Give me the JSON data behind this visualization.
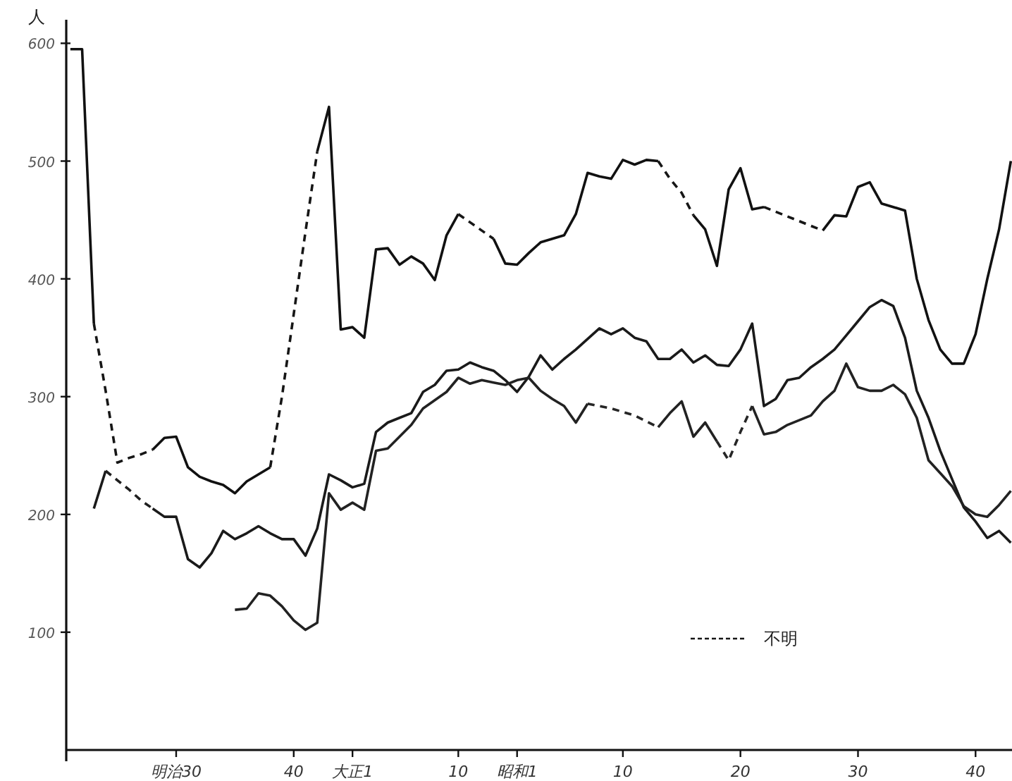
{
  "chart_data": {
    "type": "line",
    "ylabel": "人",
    "categories": [
      null,
      null,
      null,
      null,
      null,
      null,
      null,
      null,
      null,
      "明治30",
      null,
      null,
      null,
      null,
      null,
      null,
      null,
      null,
      null,
      "40",
      null,
      null,
      null,
      null,
      "大正1",
      null,
      null,
      null,
      null,
      null,
      null,
      null,
      null,
      "10",
      null,
      null,
      null,
      null,
      "昭和1",
      null,
      null,
      null,
      null,
      null,
      null,
      null,
      null,
      "10",
      null,
      null,
      null,
      null,
      null,
      null,
      null,
      null,
      null,
      "20",
      null,
      null,
      null,
      null,
      null,
      null,
      null,
      null,
      null,
      "30",
      null,
      null,
      null,
      null,
      null,
      null,
      null,
      null,
      null,
      "40",
      null,
      null,
      null
    ],
    "ylim": [
      0,
      620
    ],
    "yticks": [
      100,
      200,
      300,
      400,
      500,
      600
    ],
    "legend": "bottom right",
    "series": [
      {
        "color": "#111111",
        "line_style": "solid",
        "values": [
          595,
          595,
          362,
          null,
          null,
          null,
          null,
          255,
          265,
          266,
          240,
          232,
          228,
          225,
          218,
          228,
          234,
          240,
          null,
          null,
          null,
          508,
          546,
          357,
          359,
          350,
          425,
          426,
          412,
          419,
          413,
          399,
          437,
          455,
          null,
          null,
          434,
          413,
          412,
          422,
          431,
          434,
          437,
          455,
          490,
          487,
          485,
          501,
          497,
          501,
          500,
          null,
          null,
          454,
          442,
          411,
          476,
          494,
          459,
          461,
          null,
          null,
          null,
          null,
          441,
          454,
          453,
          478,
          482,
          464,
          461,
          458,
          400,
          365,
          340,
          328,
          328,
          353,
          400,
          442,
          500
        ]
      },
      {
        "name": "不明",
        "color": "#161616",
        "line_style": "dashed",
        "values": [
          null,
          null,
          362,
          305,
          244,
          248,
          251,
          255,
          null,
          null,
          null,
          null,
          null,
          null,
          null,
          null,
          null,
          240,
          300,
          370,
          440,
          508,
          null,
          null,
          null,
          null,
          null,
          null,
          null,
          null,
          null,
          null,
          null,
          455,
          448,
          441,
          434,
          null,
          null,
          null,
          null,
          null,
          null,
          null,
          null,
          null,
          null,
          null,
          null,
          null,
          500,
          485,
          473,
          454,
          null,
          null,
          null,
          null,
          null,
          461,
          457,
          453,
          449,
          445,
          441,
          null,
          null,
          null,
          null,
          null,
          null,
          null,
          null,
          null,
          null,
          null,
          null,
          null,
          null,
          null,
          null
        ]
      },
      {
        "color": "#1a1a1a",
        "line_style": "solid",
        "values": [
          null,
          null,
          205,
          237,
          null,
          null,
          null,
          205,
          198,
          198,
          162,
          155,
          167,
          186,
          179,
          184,
          190,
          184,
          179,
          179,
          165,
          188,
          234,
          229,
          223,
          226,
          270,
          278,
          282,
          286,
          304,
          310,
          322,
          323,
          329,
          325,
          322,
          314,
          304,
          317,
          335,
          323,
          332,
          340,
          349,
          358,
          353,
          358,
          350,
          347,
          332,
          332,
          340,
          329,
          335,
          327,
          326,
          340,
          362,
          292,
          298,
          314,
          316,
          325,
          332,
          340,
          352,
          364,
          376,
          382,
          377,
          350,
          305,
          282,
          254,
          230,
          206,
          194,
          180,
          186,
          176
        ]
      },
      {
        "color": "#1e1e1e",
        "line_style": "dashed",
        "values": [
          null,
          null,
          null,
          237,
          229,
          221,
          212,
          205,
          null,
          null,
          null,
          null,
          null,
          null,
          null,
          null,
          null,
          null,
          null,
          null,
          null,
          null,
          null,
          null,
          null,
          null,
          null,
          null,
          null,
          null,
          null,
          null,
          null,
          null,
          null,
          null,
          null,
          null,
          null,
          null,
          null,
          null,
          null,
          null,
          null,
          null,
          null,
          null,
          null,
          null,
          null,
          null,
          null,
          null,
          null,
          null,
          null,
          null,
          null,
          null,
          null,
          null,
          null,
          null,
          null,
          null,
          null,
          null,
          null,
          null,
          null,
          null,
          null,
          null,
          null,
          null,
          null,
          null,
          null,
          null,
          null
        ]
      },
      {
        "color": "#222222",
        "line_style": "solid",
        "values": [
          null,
          null,
          null,
          null,
          null,
          null,
          null,
          null,
          null,
          null,
          null,
          null,
          null,
          null,
          119,
          120,
          133,
          131,
          122,
          110,
          102,
          108,
          218,
          204,
          210,
          204,
          254,
          256,
          266,
          276,
          290,
          297,
          304,
          316,
          311,
          314,
          312,
          310,
          314,
          316,
          305,
          298,
          292,
          278,
          294,
          null,
          null,
          null,
          null,
          null,
          274,
          286,
          296,
          266,
          278,
          262,
          null,
          null,
          292,
          268,
          270,
          276,
          280,
          284,
          296,
          305,
          328,
          308,
          305,
          305,
          310,
          302,
          282,
          246,
          235,
          224,
          207,
          200,
          198,
          208,
          220
        ]
      },
      {
        "color": "#262626",
        "line_style": "dashed",
        "values": [
          null,
          null,
          null,
          null,
          null,
          null,
          null,
          null,
          null,
          null,
          null,
          null,
          null,
          null,
          null,
          null,
          null,
          null,
          null,
          null,
          null,
          null,
          null,
          null,
          null,
          null,
          null,
          null,
          null,
          null,
          null,
          null,
          null,
          null,
          null,
          null,
          null,
          null,
          null,
          null,
          null,
          null,
          null,
          null,
          294,
          292,
          290,
          287,
          284,
          279,
          274,
          null,
          null,
          null,
          null,
          262,
          246,
          270,
          292,
          null,
          null,
          null,
          null,
          null,
          null,
          null,
          null,
          null,
          null,
          null,
          null,
          null,
          null,
          null,
          null,
          null,
          null,
          null,
          null,
          null,
          null
        ]
      }
    ]
  }
}
